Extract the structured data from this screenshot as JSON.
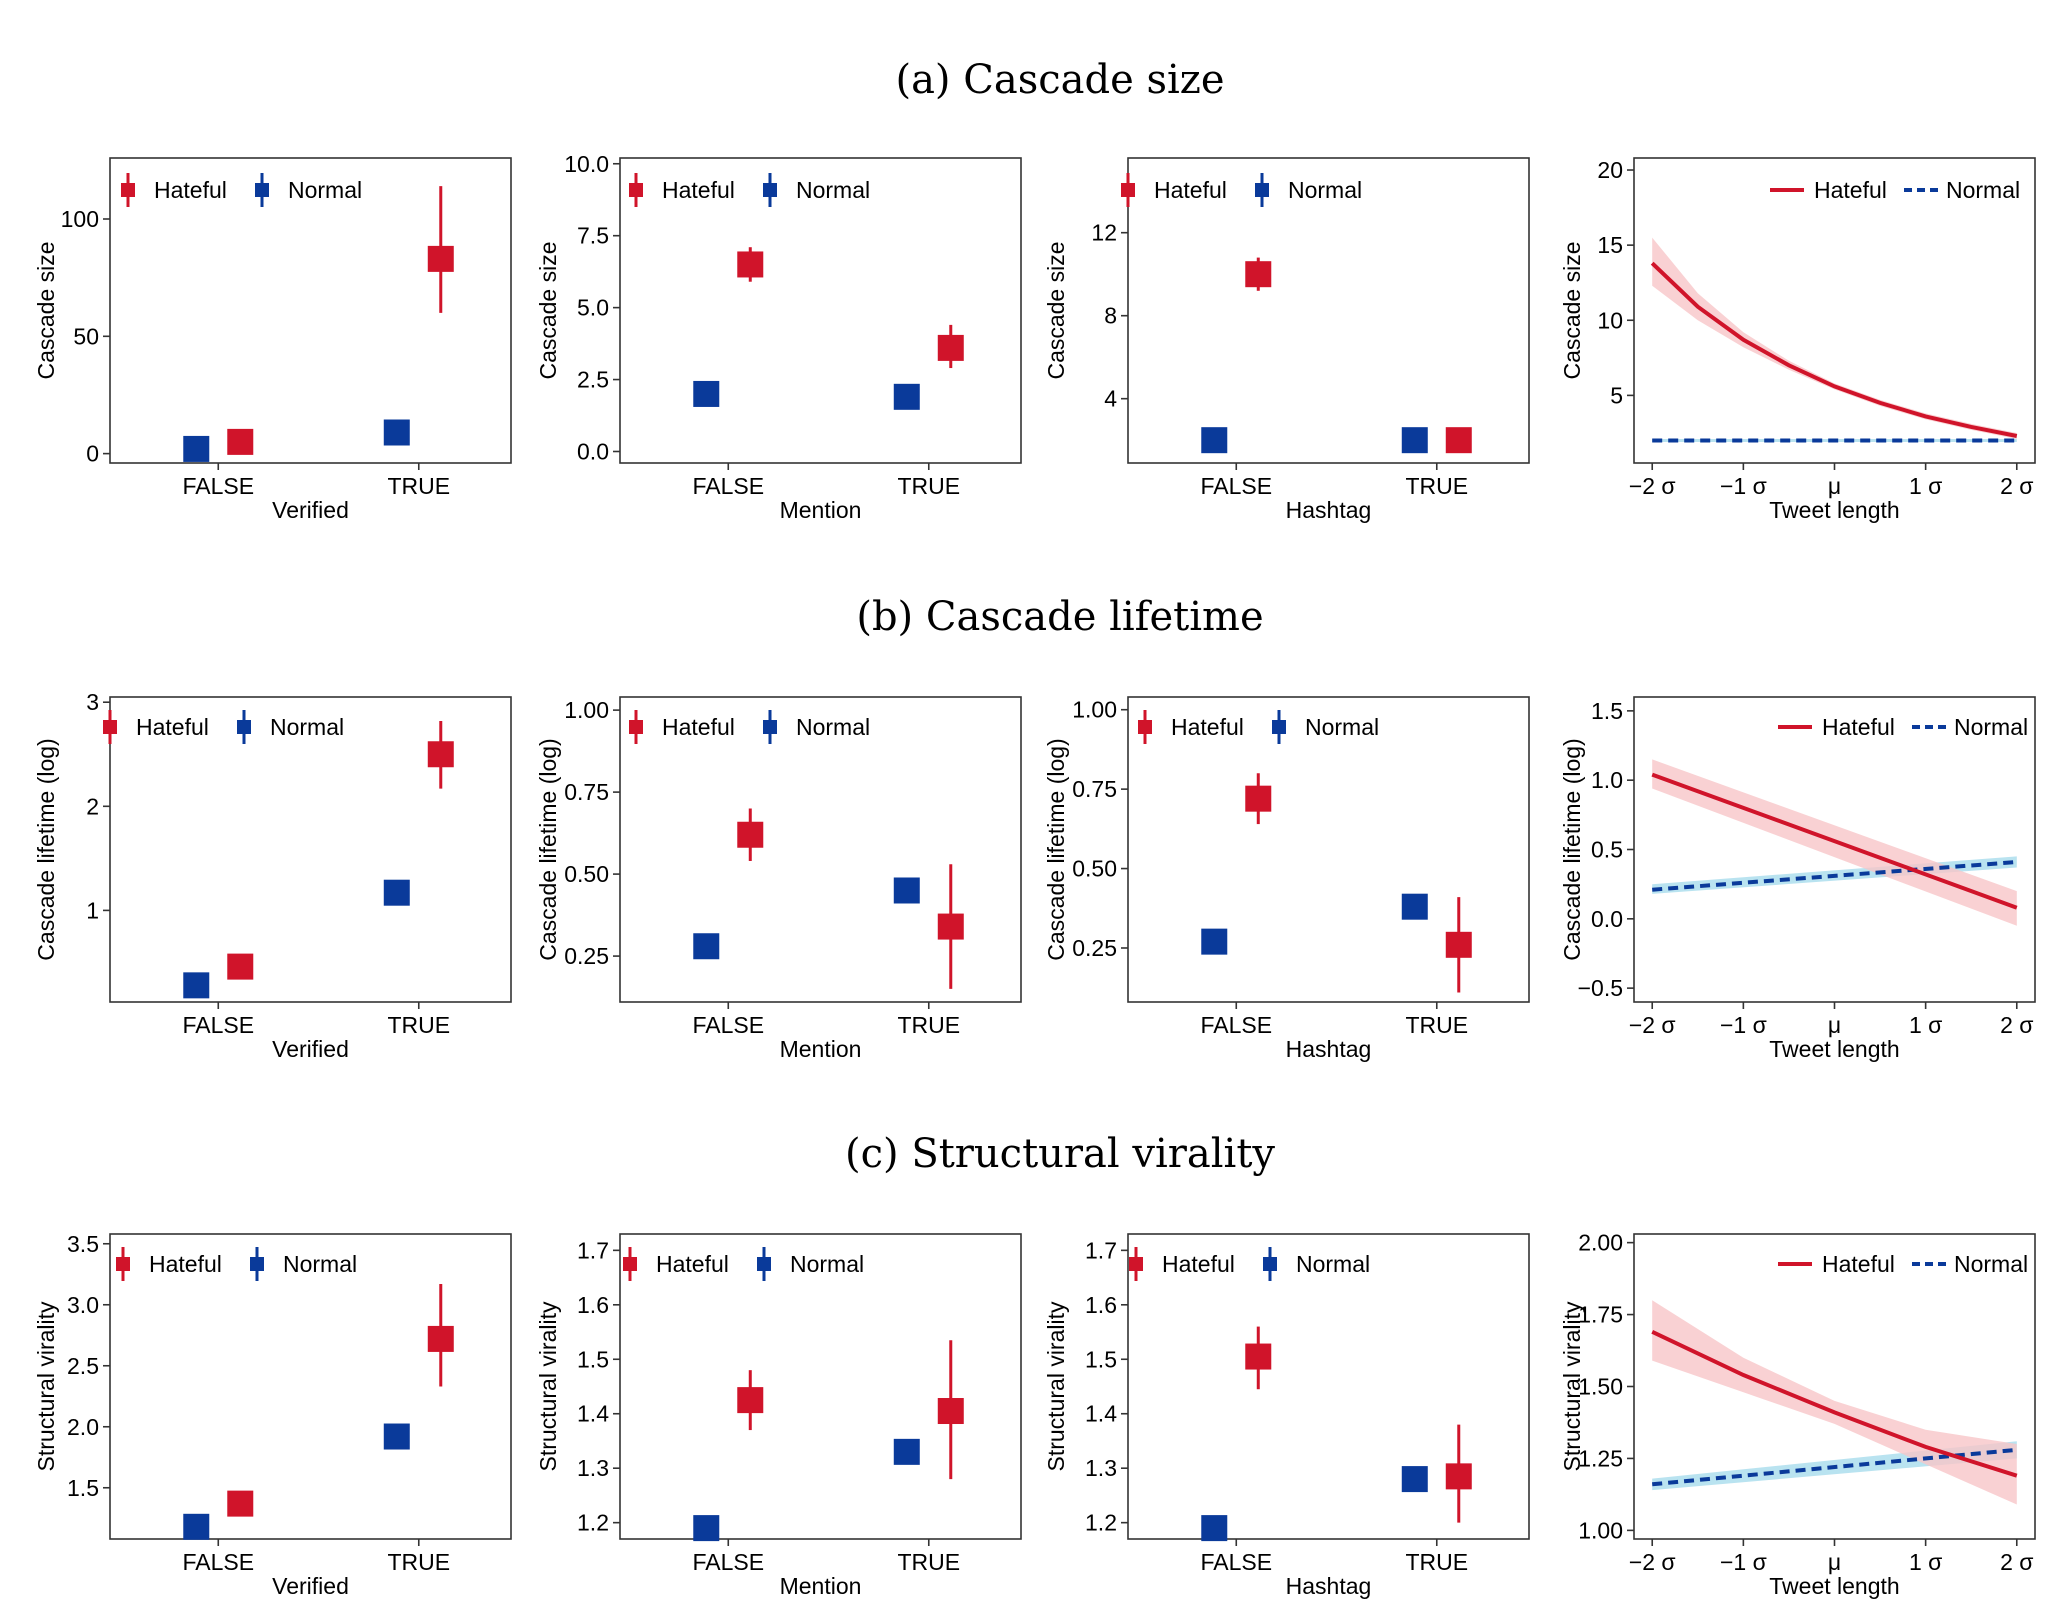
{
  "colors": {
    "hateful": "#d0142a",
    "normal": "#0a3a9a",
    "hateful_band": "#f7c5c8",
    "normal_band": "#a8dcec"
  },
  "legend": {
    "hateful": "Hateful",
    "normal": "Normal"
  },
  "rows": [
    {
      "title": "(a) Cascade size",
      "ylabel": "Cascade size",
      "panels": [
        {
          "type": "point",
          "xlabel": "Verified",
          "categories": [
            "FALSE",
            "TRUE"
          ],
          "ylim": [
            -4,
            126
          ],
          "yticks": [
            0,
            50,
            100
          ],
          "yticklabels": [
            "0",
            "50",
            "100"
          ],
          "hateful": [
            {
              "y": 5,
              "lo": 3,
              "hi": 7
            },
            {
              "y": 83,
              "lo": 60,
              "hi": 114
            }
          ],
          "normal": [
            {
              "y": 2,
              "lo": 1,
              "hi": 3
            },
            {
              "y": 9,
              "lo": 7,
              "hi": 11
            }
          ]
        },
        {
          "type": "point",
          "xlabel": "Mention",
          "categories": [
            "FALSE",
            "TRUE"
          ],
          "ylim": [
            -0.4,
            10.2
          ],
          "yticks": [
            0,
            2.5,
            5,
            7.5,
            10
          ],
          "yticklabels": [
            "0.0",
            "2.5",
            "5.0",
            "7.5",
            "10.0"
          ],
          "hateful": [
            {
              "y": 6.5,
              "lo": 5.9,
              "hi": 7.1
            },
            {
              "y": 3.6,
              "lo": 2.9,
              "hi": 4.4
            }
          ],
          "normal": [
            {
              "y": 2.0,
              "lo": 1.9,
              "hi": 2.1
            },
            {
              "y": 1.9,
              "lo": 1.8,
              "hi": 2.0
            }
          ]
        },
        {
          "type": "point",
          "xlabel": "Hashtag",
          "categories": [
            "FALSE",
            "TRUE"
          ],
          "ylim": [
            0.9,
            15.6
          ],
          "yticks": [
            4,
            8,
            12
          ],
          "yticklabels": [
            "4",
            "8",
            "12"
          ],
          "hateful": [
            {
              "y": 10.0,
              "lo": 9.2,
              "hi": 10.8
            },
            {
              "y": 2.0,
              "lo": 1.8,
              "hi": 2.2
            }
          ],
          "normal": [
            {
              "y": 2.0,
              "lo": 1.9,
              "hi": 2.1
            },
            {
              "y": 2.0,
              "lo": 1.9,
              "hi": 2.1
            }
          ]
        },
        {
          "type": "line",
          "xlabel": "Tweet length",
          "xticks": [
            -2,
            -1,
            0,
            1,
            2
          ],
          "xticklabels": [
            "−2 σ",
            "−1 σ",
            "μ",
            "1 σ",
            "2 σ"
          ],
          "xlim": [
            -2.2,
            2.2
          ],
          "ylim": [
            0.5,
            20.8
          ],
          "yticks": [
            5,
            10,
            15,
            20
          ],
          "yticklabels": [
            "5",
            "10",
            "15",
            "20"
          ],
          "hateful": {
            "x": [
              -2,
              -1.5,
              -1,
              -0.5,
              0,
              0.5,
              1,
              1.5,
              2
            ],
            "y": [
              13.8,
              10.9,
              8.7,
              7.0,
              5.6,
              4.5,
              3.6,
              2.9,
              2.3
            ],
            "lo": [
              12.3,
              10.0,
              8.2,
              6.7,
              5.4,
              4.3,
              3.4,
              2.7,
              2.1
            ],
            "hi": [
              15.5,
              11.8,
              9.2,
              7.3,
              5.8,
              4.7,
              3.8,
              3.1,
              2.5
            ]
          },
          "normal": {
            "x": [
              -2,
              2
            ],
            "y": [
              2.0,
              2.0
            ],
            "lo": [
              1.9,
              1.9
            ],
            "hi": [
              2.1,
              2.1
            ]
          }
        }
      ]
    },
    {
      "title": "(b) Cascade lifetime",
      "ylabel": "Cascade lifetime (log)",
      "panels": [
        {
          "type": "point",
          "xlabel": "Verified",
          "categories": [
            "FALSE",
            "TRUE"
          ],
          "ylim": [
            0.12,
            3.05
          ],
          "yticks": [
            1,
            2,
            3
          ],
          "yticklabels": [
            "1",
            "2",
            "3"
          ],
          "hateful": [
            {
              "y": 0.46,
              "lo": 0.38,
              "hi": 0.54
            },
            {
              "y": 2.5,
              "lo": 2.17,
              "hi": 2.82
            }
          ],
          "normal": [
            {
              "y": 0.28,
              "lo": 0.24,
              "hi": 0.32
            },
            {
              "y": 1.17,
              "lo": 1.1,
              "hi": 1.24
            }
          ]
        },
        {
          "type": "point",
          "xlabel": "Mention",
          "categories": [
            "FALSE",
            "TRUE"
          ],
          "ylim": [
            0.11,
            1.04
          ],
          "yticks": [
            0.25,
            0.5,
            0.75,
            1.0
          ],
          "yticklabels": [
            "0.25",
            "0.50",
            "0.75",
            "1.00"
          ],
          "hateful": [
            {
              "y": 0.62,
              "lo": 0.54,
              "hi": 0.7
            },
            {
              "y": 0.34,
              "lo": 0.15,
              "hi": 0.53
            }
          ],
          "normal": [
            {
              "y": 0.28,
              "lo": 0.25,
              "hi": 0.31
            },
            {
              "y": 0.45,
              "lo": 0.42,
              "hi": 0.48
            }
          ]
        },
        {
          "type": "point",
          "xlabel": "Hashtag",
          "categories": [
            "FALSE",
            "TRUE"
          ],
          "ylim": [
            0.08,
            1.04
          ],
          "yticks": [
            0.25,
            0.5,
            0.75,
            1.0
          ],
          "yticklabels": [
            "0.25",
            "0.50",
            "0.75",
            "1.00"
          ],
          "hateful": [
            {
              "y": 0.72,
              "lo": 0.64,
              "hi": 0.8
            },
            {
              "y": 0.26,
              "lo": 0.11,
              "hi": 0.41
            }
          ],
          "normal": [
            {
              "y": 0.27,
              "lo": 0.24,
              "hi": 0.3
            },
            {
              "y": 0.38,
              "lo": 0.35,
              "hi": 0.41
            }
          ]
        },
        {
          "type": "line",
          "xlabel": "Tweet length",
          "xticks": [
            -2,
            -1,
            0,
            1,
            2
          ],
          "xticklabels": [
            "−2 σ",
            "−1 σ",
            "μ",
            "1 σ",
            "2 σ"
          ],
          "xlim": [
            -2.2,
            2.2
          ],
          "ylim": [
            -0.6,
            1.6
          ],
          "yticks": [
            -0.5,
            0,
            0.5,
            1.0,
            1.5
          ],
          "yticklabels": [
            "−0.5",
            "0.0",
            "0.5",
            "1.0",
            "1.5"
          ],
          "hateful": {
            "x": [
              -2,
              2
            ],
            "y": [
              1.04,
              0.08
            ],
            "lo": [
              0.94,
              -0.05
            ],
            "hi": [
              1.15,
              0.2
            ]
          },
          "normal": {
            "x": [
              -2,
              2
            ],
            "y": [
              0.21,
              0.41
            ],
            "lo": [
              0.18,
              0.37
            ],
            "hi": [
              0.25,
              0.45
            ]
          }
        }
      ]
    },
    {
      "title": "(c) Structural virality",
      "ylabel": "Structural virality",
      "panels": [
        {
          "type": "point",
          "xlabel": "Verified",
          "categories": [
            "FALSE",
            "TRUE"
          ],
          "ylim": [
            1.08,
            3.58
          ],
          "yticks": [
            1.5,
            2.0,
            2.5,
            3.0,
            3.5
          ],
          "yticklabels": [
            "1.5",
            "2.0",
            "2.5",
            "3.0",
            "3.5"
          ],
          "hateful": [
            {
              "y": 1.37,
              "lo": 1.3,
              "hi": 1.44
            },
            {
              "y": 2.72,
              "lo": 2.33,
              "hi": 3.17
            }
          ],
          "normal": [
            {
              "y": 1.18,
              "lo": 1.15,
              "hi": 1.21
            },
            {
              "y": 1.92,
              "lo": 1.87,
              "hi": 1.97
            }
          ]
        },
        {
          "type": "point",
          "xlabel": "Mention",
          "categories": [
            "FALSE",
            "TRUE"
          ],
          "ylim": [
            1.17,
            1.73
          ],
          "yticks": [
            1.2,
            1.3,
            1.4,
            1.5,
            1.6,
            1.7
          ],
          "yticklabels": [
            "1.2",
            "1.3",
            "1.4",
            "1.5",
            "1.6",
            "1.7"
          ],
          "hateful": [
            {
              "y": 1.425,
              "lo": 1.37,
              "hi": 1.48
            },
            {
              "y": 1.405,
              "lo": 1.28,
              "hi": 1.535
            }
          ],
          "normal": [
            {
              "y": 1.19,
              "lo": 1.18,
              "hi": 1.2
            },
            {
              "y": 1.33,
              "lo": 1.32,
              "hi": 1.34
            }
          ]
        },
        {
          "type": "point",
          "xlabel": "Hashtag",
          "categories": [
            "FALSE",
            "TRUE"
          ],
          "ylim": [
            1.17,
            1.73
          ],
          "yticks": [
            1.2,
            1.3,
            1.4,
            1.5,
            1.6,
            1.7
          ],
          "yticklabels": [
            "1.2",
            "1.3",
            "1.4",
            "1.5",
            "1.6",
            "1.7"
          ],
          "hateful": [
            {
              "y": 1.505,
              "lo": 1.445,
              "hi": 1.56
            },
            {
              "y": 1.285,
              "lo": 1.2,
              "hi": 1.38
            }
          ],
          "normal": [
            {
              "y": 1.19,
              "lo": 1.18,
              "hi": 1.2
            },
            {
              "y": 1.28,
              "lo": 1.27,
              "hi": 1.29
            }
          ]
        },
        {
          "type": "line",
          "xlabel": "Tweet length",
          "xticks": [
            -2,
            -1,
            0,
            1,
            2
          ],
          "xticklabels": [
            "−2 σ",
            "−1 σ",
            "μ",
            "1 σ",
            "2 σ"
          ],
          "xlim": [
            -2.2,
            2.2
          ],
          "ylim": [
            0.97,
            2.03
          ],
          "yticks": [
            1.0,
            1.25,
            1.5,
            1.75,
            2.0
          ],
          "yticklabels": [
            "1.00",
            "1.25",
            "1.50",
            "1.75",
            "2.00"
          ],
          "hateful": {
            "x": [
              -2,
              -1,
              0,
              1,
              2
            ],
            "y": [
              1.69,
              1.54,
              1.41,
              1.29,
              1.19
            ],
            "lo": [
              1.59,
              1.48,
              1.37,
              1.23,
              1.09
            ],
            "hi": [
              1.8,
              1.6,
              1.45,
              1.35,
              1.3
            ]
          },
          "normal": {
            "x": [
              -2,
              2
            ],
            "y": [
              1.16,
              1.28
            ],
            "lo": [
              1.14,
              1.25
            ],
            "hi": [
              1.18,
              1.31
            ]
          }
        }
      ]
    }
  ]
}
